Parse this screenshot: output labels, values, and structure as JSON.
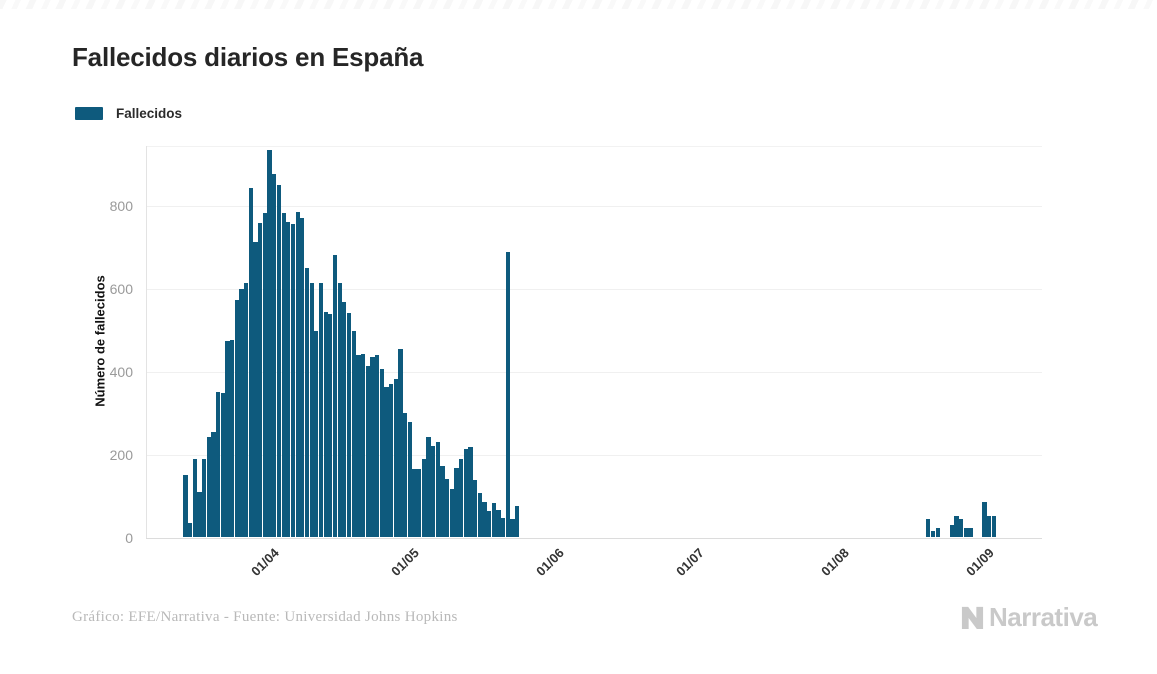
{
  "header": {
    "title": "Fallecidos diarios en España"
  },
  "legend": {
    "items": [
      {
        "label": "Fallecidos",
        "color": "#0e5a7d"
      }
    ]
  },
  "footer": {
    "credit": "Gráfico: EFE/Narrativa - Fuente: Universidad Johns Hopkins",
    "brand": "Narrativa"
  },
  "chart_data": {
    "type": "bar",
    "title": "Fallecidos diarios en España",
    "series_name": "Fallecidos",
    "xlabel": "",
    "ylabel": "Número de fallecidos",
    "bar_color": "#0e5a7d",
    "grid": true,
    "legend_position": "top-left",
    "ylim": [
      0,
      946
    ],
    "yticks": [
      0,
      200,
      400,
      600,
      800
    ],
    "x_tick_labels": [
      {
        "label": "01/04",
        "day_index": 17
      },
      {
        "label": "01/05",
        "day_index": 47
      },
      {
        "label": "01/06",
        "day_index": 78
      },
      {
        "label": "01/07",
        "day_index": 108
      },
      {
        "label": "01/08",
        "day_index": 139
      },
      {
        "label": "01/09",
        "day_index": 170
      }
    ],
    "dates": {
      "start": "2020-03-15",
      "end": "2020-09-04",
      "frequency": "daily"
    },
    "values": [
      150,
      35,
      190,
      110,
      190,
      242,
      255,
      351,
      348,
      474,
      477,
      574,
      600,
      615,
      845,
      715,
      760,
      784,
      936,
      878,
      852,
      784,
      762,
      758,
      787,
      772,
      652,
      614,
      498,
      614,
      545,
      541,
      683,
      614,
      570,
      543,
      500,
      441,
      444,
      415,
      436,
      440,
      406,
      363,
      371,
      383,
      456,
      300,
      280,
      166,
      166,
      189,
      244,
      221,
      231,
      173,
      142,
      118,
      169,
      189,
      215,
      218,
      140,
      108,
      85,
      65,
      83,
      67,
      47,
      691,
      44,
      75,
      0,
      0,
      0,
      0,
      0,
      0,
      0,
      0,
      0,
      0,
      0,
      0,
      0,
      0,
      0,
      0,
      0,
      0,
      0,
      0,
      0,
      0,
      0,
      0,
      0,
      0,
      0,
      0,
      0,
      0,
      0,
      0,
      0,
      0,
      0,
      0,
      0,
      0,
      0,
      0,
      0,
      0,
      0,
      0,
      0,
      0,
      0,
      0,
      0,
      0,
      0,
      0,
      0,
      0,
      0,
      0,
      0,
      0,
      0,
      0,
      0,
      0,
      0,
      0,
      0,
      0,
      0,
      0,
      0,
      0,
      0,
      0,
      0,
      0,
      0,
      0,
      0,
      0,
      0,
      0,
      0,
      0,
      0,
      0,
      0,
      0,
      0,
      45,
      16,
      22,
      0,
      0,
      30,
      51,
      45,
      24,
      24,
      0,
      0,
      86,
      53,
      53
    ]
  }
}
